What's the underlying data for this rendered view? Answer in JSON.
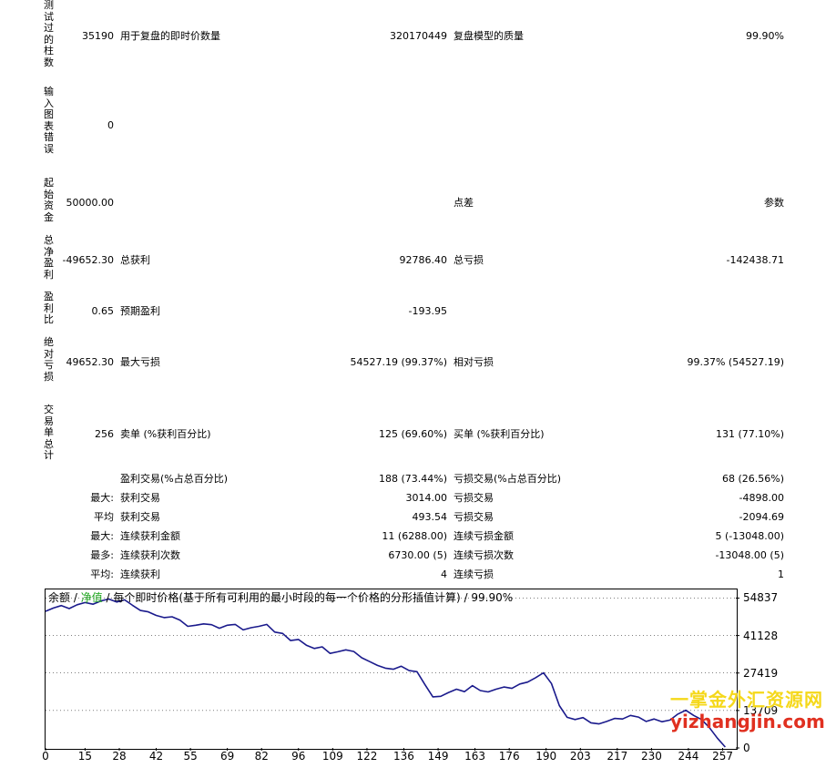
{
  "vertical_labels": {
    "bars_tested": "测试过的柱数",
    "chart_errors": "输入图表错误",
    "initial_deposit": "起始资金",
    "total_net_profit": "总净盈利",
    "profit_factor": "盈利比",
    "absolute_drawdown": "绝对亏损",
    "total_trades": "交易单总计"
  },
  "rows": {
    "bars_tested_value": "35190",
    "ticks_label": "用于复盘的即时价数量",
    "ticks_value": "320170449",
    "quality_label": "复盘模型的质量",
    "quality_value": "99.90%",
    "chart_errors_value": "0",
    "initial_deposit_value": "50000.00",
    "spread_label": "点差",
    "parameters_label": "参数",
    "total_net_profit_value": "-49652.30",
    "gross_profit_label": "总获利",
    "gross_profit_value": "92786.40",
    "gross_loss_label": "总亏损",
    "gross_loss_value": "-142438.71",
    "profit_factor_value": "0.65",
    "expected_payoff_label": "预期盈利",
    "expected_payoff_value": "-193.95",
    "absolute_drawdown_value": "49652.30",
    "max_drawdown_label": "最大亏损",
    "max_drawdown_value": "54527.19 (99.37%)",
    "relative_drawdown_label": "相对亏损",
    "relative_drawdown_value": "99.37% (54527.19)",
    "total_trades_value": "256",
    "short_label": "卖单 (%获利百分比)",
    "short_value": "125 (69.60%)",
    "long_label": "买单 (%获利百分比)",
    "long_value": "131 (77.10%)",
    "profit_trades_label": "盈利交易(%占总百分比)",
    "profit_trades_value": "188 (73.44%)",
    "loss_trades_label": "亏损交易(%占总百分比)",
    "loss_trades_value": "68 (26.56%)"
  },
  "detail_rows": [
    {
      "prefix": "最大:",
      "label1": "获利交易",
      "value1": "3014.00",
      "label2": "亏损交易",
      "value2": "-4898.00"
    },
    {
      "prefix": "平均",
      "label1": "获利交易",
      "value1": "493.54",
      "label2": "亏损交易",
      "value2": "-2094.69"
    },
    {
      "prefix": "最大:",
      "label1": "连续获利金额",
      "value1": "11 (6288.00)",
      "label2": "连续亏损金额",
      "value2": "5 (-13048.00)"
    },
    {
      "prefix": "最多:",
      "label1": "连续获利次数",
      "value1": "6730.00 (5)",
      "label2": "连续亏损次数",
      "value2": "-13048.00 (5)"
    },
    {
      "prefix": "平均:",
      "label1": "连续获利",
      "value1": "4",
      "label2": "连续亏损",
      "value2": "1"
    }
  ],
  "legend": {
    "balance": "余额",
    "sep1": " / ",
    "equity": "净值",
    "sep2": " / ",
    "description": "每个即时价格(基于所有可利用的最小时段的每一个价格的分形插值计算) / 99.90%"
  },
  "colors": {
    "line": "#1a1a8c",
    "equity_legend": "#19a319",
    "grid": "#000000"
  },
  "watermark": {
    "cn": "一掌金外汇资源网",
    "url": "yizhangjin.com"
  },
  "chart_data": {
    "type": "line",
    "title": "",
    "xlabel": "",
    "ylabel": "",
    "x_ticks": [
      0,
      15,
      28,
      42,
      55,
      69,
      82,
      96,
      109,
      122,
      136,
      149,
      163,
      176,
      190,
      203,
      217,
      230,
      244,
      257
    ],
    "y_ticks": [
      0,
      13709,
      27419,
      41128,
      54837
    ],
    "xlim": [
      0,
      262
    ],
    "ylim": [
      0,
      58000
    ],
    "series": [
      {
        "name": "余额",
        "x": [
          0,
          3,
          6,
          9,
          12,
          15,
          18,
          21,
          24,
          27,
          30,
          33,
          36,
          39,
          42,
          45,
          48,
          51,
          54,
          57,
          60,
          63,
          66,
          69,
          72,
          75,
          78,
          81,
          84,
          87,
          90,
          93,
          96,
          99,
          102,
          105,
          108,
          111,
          114,
          117,
          120,
          123,
          126,
          129,
          132,
          135,
          138,
          141,
          144,
          147,
          150,
          153,
          156,
          159,
          162,
          165,
          168,
          171,
          174,
          177,
          180,
          183,
          186,
          189,
          192,
          195,
          198,
          201,
          204,
          207,
          210,
          213,
          216,
          219,
          222,
          225,
          228,
          231,
          234,
          237,
          240,
          243,
          246,
          249,
          252,
          255,
          258
        ],
        "values": [
          50000,
          51200,
          52100,
          51000,
          52400,
          53200,
          52600,
          53800,
          54500,
          53400,
          54200,
          52200,
          50300,
          49800,
          48500,
          47700,
          48000,
          46800,
          44500,
          44900,
          45400,
          45100,
          43800,
          44900,
          45200,
          43200,
          44000,
          44500,
          45200,
          42400,
          41900,
          39300,
          39700,
          37600,
          36400,
          37000,
          34600,
          35200,
          35900,
          35300,
          33000,
          31600,
          30200,
          29200,
          28800,
          29900,
          28300,
          27900,
          23200,
          18700,
          18900,
          20300,
          21500,
          20600,
          22800,
          21000,
          20500,
          21500,
          22300,
          21800,
          23400,
          24100,
          25700,
          27500,
          23600,
          15500,
          11200,
          10400,
          11100,
          9200,
          8800,
          9700,
          10800,
          10600,
          11900,
          11300,
          9700,
          10600,
          9600,
          10200,
          12400,
          13800,
          11900,
          10400,
          7400,
          3600,
          350
        ]
      }
    ]
  }
}
